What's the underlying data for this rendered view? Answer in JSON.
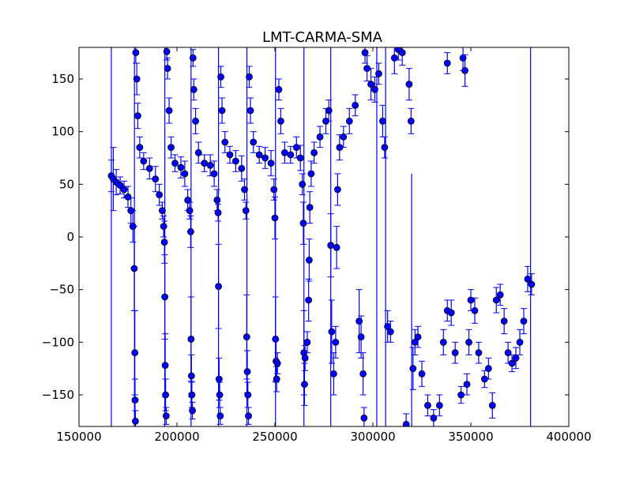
{
  "chart_data": {
    "type": "scatter",
    "title": "LMT-CARMA-SMA",
    "xlabel": "",
    "ylabel": "",
    "xlim": [
      150000,
      400000
    ],
    "ylim": [
      -180,
      180
    ],
    "xticks": [
      150000,
      200000,
      250000,
      300000,
      350000,
      400000
    ],
    "yticks": [
      -150,
      -100,
      -50,
      0,
      50,
      100,
      150
    ],
    "xtick_labels": [
      "150000",
      "200000",
      "250000",
      "300000",
      "350000",
      "400000"
    ],
    "ytick_labels": [
      "−150",
      "−100",
      "−50",
      "0",
      "50",
      "100",
      "150"
    ],
    "grid": false,
    "legend": "none",
    "colors": {
      "errorbar": "#0000ff",
      "marker_fill": "#0000ff",
      "marker_edge": "#000000",
      "axes": "#000000",
      "background": "#ffffff"
    },
    "series": [
      {
        "marker": "circle",
        "errorbar": true,
        "points": [
          {
            "x": 166500,
            "y": 58,
            "e": 15
          },
          {
            "x": 167500,
            "y": 55,
            "e": 30
          },
          {
            "x": 169000,
            "y": 52,
            "e": 12
          },
          {
            "x": 171000,
            "y": 49,
            "e": 8
          },
          {
            "x": 173000,
            "y": 45,
            "e": 8
          },
          {
            "x": 175000,
            "y": 38,
            "e": 10
          },
          {
            "x": 176500,
            "y": 25,
            "e": 12
          },
          {
            "x": 177500,
            "y": 10,
            "e": 15
          },
          {
            "x": 178200,
            "y": -30,
            "e": 40
          },
          {
            "x": 178500,
            "y": -110,
            "e": 40
          },
          {
            "x": 178600,
            "y": -155,
            "e": 20
          },
          {
            "x": 178800,
            "y": -175,
            "e": 10
          },
          {
            "x": 179000,
            "y": 175,
            "e": 10
          },
          {
            "x": 179500,
            "y": 150,
            "e": 15
          },
          {
            "x": 180000,
            "y": 115,
            "e": 12
          },
          {
            "x": 181000,
            "y": 85,
            "e": 10
          },
          {
            "x": 183000,
            "y": 72,
            "e": 8
          },
          {
            "x": 186000,
            "y": 65,
            "e": 10
          },
          {
            "x": 189000,
            "y": 55,
            "e": 12
          },
          {
            "x": 191000,
            "y": 40,
            "e": 10
          },
          {
            "x": 192500,
            "y": 25,
            "e": 8
          },
          {
            "x": 193200,
            "y": 10,
            "e": 10
          },
          {
            "x": 193600,
            "y": -5,
            "e": 20
          },
          {
            "x": 193800,
            "y": -57,
            "e": 40
          },
          {
            "x": 194000,
            "y": -122,
            "e": 30
          },
          {
            "x": 194200,
            "y": -150,
            "e": 15
          },
          {
            "x": 194500,
            "y": -170,
            "e": 8
          },
          {
            "x": 194800,
            "y": 176,
            "e": 8
          },
          {
            "x": 195200,
            "y": 160,
            "e": 10
          },
          {
            "x": 196000,
            "y": 120,
            "e": 12
          },
          {
            "x": 197000,
            "y": 85,
            "e": 10
          },
          {
            "x": 199000,
            "y": 70,
            "e": 8
          },
          {
            "x": 202000,
            "y": 66,
            "e": 10
          },
          {
            "x": 204000,
            "y": 60,
            "e": 12
          },
          {
            "x": 205500,
            "y": 35,
            "e": 10
          },
          {
            "x": 206500,
            "y": 25,
            "e": 8
          },
          {
            "x": 207000,
            "y": 5,
            "e": 15
          },
          {
            "x": 207200,
            "y": -97,
            "e": 40
          },
          {
            "x": 207400,
            "y": -132,
            "e": 20
          },
          {
            "x": 207600,
            "y": -150,
            "e": 12
          },
          {
            "x": 207900,
            "y": -165,
            "e": 8
          },
          {
            "x": 208200,
            "y": 170,
            "e": 8
          },
          {
            "x": 208600,
            "y": 140,
            "e": 10
          },
          {
            "x": 209500,
            "y": 110,
            "e": 12
          },
          {
            "x": 211000,
            "y": 80,
            "e": 10
          },
          {
            "x": 214000,
            "y": 70,
            "e": 8
          },
          {
            "x": 217000,
            "y": 68,
            "e": 10
          },
          {
            "x": 219000,
            "y": 60,
            "e": 12
          },
          {
            "x": 220500,
            "y": 35,
            "e": 10
          },
          {
            "x": 221000,
            "y": 23,
            "e": 8
          },
          {
            "x": 221200,
            "y": -47,
            "e": 40
          },
          {
            "x": 221500,
            "y": -135,
            "e": 20
          },
          {
            "x": 221800,
            "y": -150,
            "e": 12
          },
          {
            "x": 222100,
            "y": -170,
            "e": 8
          },
          {
            "x": 222400,
            "y": 152,
            "e": 10
          },
          {
            "x": 223000,
            "y": 120,
            "e": 12
          },
          {
            "x": 224500,
            "y": 90,
            "e": 10
          },
          {
            "x": 227000,
            "y": 78,
            "e": 8
          },
          {
            "x": 230000,
            "y": 72,
            "e": 10
          },
          {
            "x": 233000,
            "y": 65,
            "e": 12
          },
          {
            "x": 234500,
            "y": 45,
            "e": 10
          },
          {
            "x": 235200,
            "y": 25,
            "e": 8
          },
          {
            "x": 235600,
            "y": -95,
            "e": 40
          },
          {
            "x": 235900,
            "y": -128,
            "e": 20
          },
          {
            "x": 236200,
            "y": -150,
            "e": 12
          },
          {
            "x": 236500,
            "y": -170,
            "e": 8
          },
          {
            "x": 236900,
            "y": 152,
            "e": 10
          },
          {
            "x": 237500,
            "y": 120,
            "e": 12
          },
          {
            "x": 239000,
            "y": 90,
            "e": 10
          },
          {
            "x": 242000,
            "y": 78,
            "e": 8
          },
          {
            "x": 245000,
            "y": 75,
            "e": 10
          },
          {
            "x": 248000,
            "y": 70,
            "e": 12
          },
          {
            "x": 249500,
            "y": 45,
            "e": 10
          },
          {
            "x": 250000,
            "y": 18,
            "e": 20
          },
          {
            "x": 250300,
            "y": -97,
            "e": 40
          },
          {
            "x": 250600,
            "y": -118,
            "e": 20
          },
          {
            "x": 250900,
            "y": -135,
            "e": 12
          },
          {
            "x": 251300,
            "y": -120,
            "e": 10
          },
          {
            "x": 252000,
            "y": 140,
            "e": 10
          },
          {
            "x": 253000,
            "y": 110,
            "e": 12
          },
          {
            "x": 255000,
            "y": 80,
            "e": 10
          },
          {
            "x": 258000,
            "y": 78,
            "e": 8
          },
          {
            "x": 261000,
            "y": 85,
            "e": 10
          },
          {
            "x": 263000,
            "y": 75,
            "e": 12
          },
          {
            "x": 264000,
            "y": 50,
            "e": 10
          },
          {
            "x": 264500,
            "y": 13,
            "e": 20
          },
          {
            "x": 264800,
            "y": -110,
            "e": 40
          },
          {
            "x": 265100,
            "y": -140,
            "e": 20
          },
          {
            "x": 265400,
            "y": -115,
            "e": 12
          },
          {
            "x": 266500,
            "y": -100,
            "e": 10
          },
          {
            "x": 267200,
            "y": -60,
            "e": 20
          },
          {
            "x": 267500,
            "y": -22,
            "e": 20
          },
          {
            "x": 267800,
            "y": 28,
            "e": 15
          },
          {
            "x": 268500,
            "y": 60,
            "e": 12
          },
          {
            "x": 270000,
            "y": 80,
            "e": 10
          },
          {
            "x": 273000,
            "y": 95,
            "e": 10
          },
          {
            "x": 276000,
            "y": 110,
            "e": 12
          },
          {
            "x": 277500,
            "y": 120,
            "e": 10
          },
          {
            "x": 278500,
            "y": -8,
            "e": 30
          },
          {
            "x": 279000,
            "y": -90,
            "e": 30
          },
          {
            "x": 280000,
            "y": -130,
            "e": 20
          },
          {
            "x": 281000,
            "y": -100,
            "e": 15
          },
          {
            "x": 281500,
            "y": -10,
            "e": 20
          },
          {
            "x": 282000,
            "y": 45,
            "e": 15
          },
          {
            "x": 283000,
            "y": 85,
            "e": 12
          },
          {
            "x": 285000,
            "y": 95,
            "e": 10
          },
          {
            "x": 288000,
            "y": 110,
            "e": 12
          },
          {
            "x": 291000,
            "y": 125,
            "e": 10
          },
          {
            "x": 293000,
            "y": -80,
            "e": 30
          },
          {
            "x": 294000,
            "y": -95,
            "e": 20
          },
          {
            "x": 295000,
            "y": -130,
            "e": 20
          },
          {
            "x": 295500,
            "y": -172,
            "e": 10
          },
          {
            "x": 296000,
            "y": 175,
            "e": 10
          },
          {
            "x": 297000,
            "y": 160,
            "e": 12
          },
          {
            "x": 299000,
            "y": 145,
            "e": 15
          },
          {
            "x": 301000,
            "y": 140,
            "e": 12
          },
          {
            "x": 303000,
            "y": 155,
            "e": 10
          },
          {
            "x": 305000,
            "y": 110,
            "e": 15
          },
          {
            "x": 306000,
            "y": 85,
            "e": 10
          },
          {
            "x": 307500,
            "y": -85,
            "e": 15
          },
          {
            "x": 309000,
            "y": -90,
            "e": 10
          },
          {
            "x": 311000,
            "y": 170,
            "e": 15
          },
          {
            "x": 313000,
            "y": 178,
            "e": 10
          },
          {
            "x": 315000,
            "y": 175,
            "e": 12
          },
          {
            "x": 317000,
            "y": -178,
            "e": 10
          },
          {
            "x": 318500,
            "y": 145,
            "e": 15
          },
          {
            "x": 319500,
            "y": 110,
            "e": 12
          },
          {
            "x": 320500,
            "y": -125,
            "e": 20
          },
          {
            "x": 321500,
            "y": -100,
            "e": 12
          },
          {
            "x": 323000,
            "y": -95,
            "e": 10
          },
          {
            "x": 325000,
            "y": -130,
            "e": 12
          },
          {
            "x": 328000,
            "y": -160,
            "e": 10
          },
          {
            "x": 331000,
            "y": -172,
            "e": 8
          },
          {
            "x": 334000,
            "y": -160,
            "e": 10
          },
          {
            "x": 336000,
            "y": -100,
            "e": 12
          },
          {
            "x": 338000,
            "y": -70,
            "e": 10
          },
          {
            "x": 340000,
            "y": -72,
            "e": 12
          },
          {
            "x": 342000,
            "y": -110,
            "e": 10
          },
          {
            "x": 345000,
            "y": -150,
            "e": 8
          },
          {
            "x": 348000,
            "y": -140,
            "e": 10
          },
          {
            "x": 349000,
            "y": -100,
            "e": 12
          },
          {
            "x": 350000,
            "y": -60,
            "e": 10
          },
          {
            "x": 352000,
            "y": -70,
            "e": 12
          },
          {
            "x": 354000,
            "y": -110,
            "e": 10
          },
          {
            "x": 357000,
            "y": -135,
            "e": 8
          },
          {
            "x": 359000,
            "y": -125,
            "e": 10
          },
          {
            "x": 361000,
            "y": -160,
            "e": 12
          },
          {
            "x": 363000,
            "y": -60,
            "e": 12
          },
          {
            "x": 365000,
            "y": -55,
            "e": 10
          },
          {
            "x": 367000,
            "y": -80,
            "e": 12
          },
          {
            "x": 369000,
            "y": -110,
            "e": 10
          },
          {
            "x": 371000,
            "y": -120,
            "e": 8
          },
          {
            "x": 373000,
            "y": -115,
            "e": 10
          },
          {
            "x": 375000,
            "y": -100,
            "e": 12
          },
          {
            "x": 377000,
            "y": -80,
            "e": 12
          },
          {
            "x": 379000,
            "y": -40,
            "e": 12
          },
          {
            "x": 381000,
            "y": -45,
            "e": 10
          },
          {
            "x": 338000,
            "y": 165,
            "e": 10
          },
          {
            "x": 346000,
            "y": 170,
            "e": 12
          },
          {
            "x": 347000,
            "y": 158,
            "e": 15
          }
        ]
      }
    ],
    "vertical_errorbars": [
      {
        "x": 166500,
        "y0": -180,
        "y1": 180
      },
      {
        "x": 178300,
        "y0": -180,
        "y1": 180
      },
      {
        "x": 193800,
        "y0": -180,
        "y1": 180
      },
      {
        "x": 207200,
        "y0": -180,
        "y1": 180
      },
      {
        "x": 221200,
        "y0": -180,
        "y1": 180
      },
      {
        "x": 235700,
        "y0": -180,
        "y1": 180
      },
      {
        "x": 250300,
        "y0": -180,
        "y1": 180
      },
      {
        "x": 264800,
        "y0": -180,
        "y1": 180
      },
      {
        "x": 278500,
        "y0": -180,
        "y1": 180
      },
      {
        "x": 306500,
        "y0": -180,
        "y1": 180
      },
      {
        "x": 380500,
        "y0": -180,
        "y1": 180
      },
      {
        "x": 302000,
        "y0": -180,
        "y1": 180
      },
      {
        "x": 319800,
        "y0": -180,
        "y1": 60
      }
    ]
  }
}
